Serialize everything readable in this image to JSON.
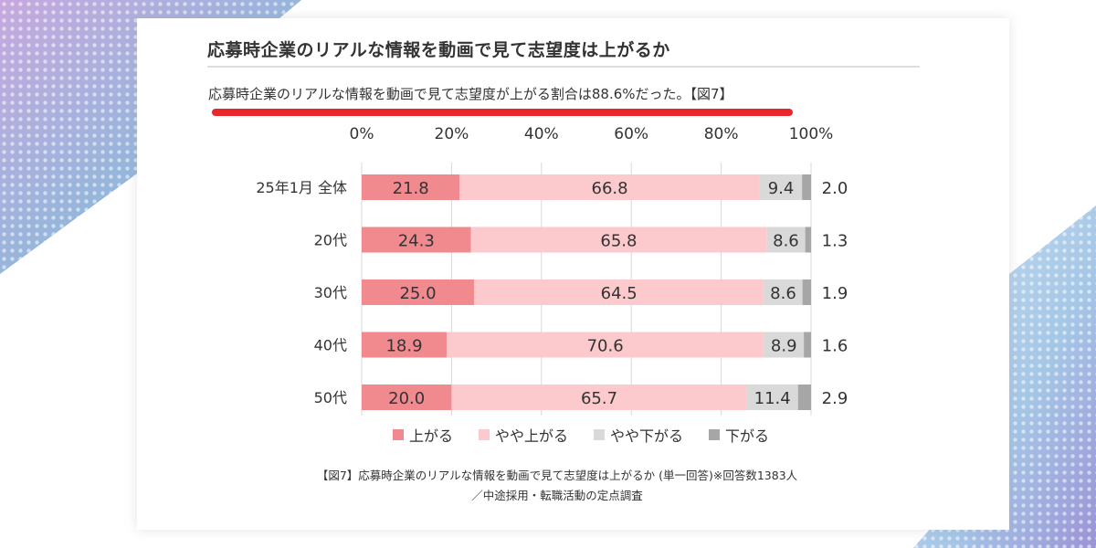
{
  "header": {
    "title": "応募時企業のリアルな情報を動画で見て志望度は上がるか",
    "subtitle": "応募時企業のリアルな情報を動画で見て志望度が上がる割合は88.6%だった。【図7】"
  },
  "chart_data": {
    "type": "bar",
    "orientation": "horizontal-stacked-100",
    "categories": [
      "25年1月 全体",
      "20代",
      "30代",
      "40代",
      "50代"
    ],
    "series": [
      {
        "name": "上がる",
        "values": [
          21.8,
          24.3,
          25.0,
          18.9,
          20.0
        ],
        "color": "#f08a8f"
      },
      {
        "name": "やや上がる",
        "values": [
          66.8,
          65.8,
          64.5,
          70.6,
          65.7
        ],
        "color": "#fcc9cc"
      },
      {
        "name": "やや下がる",
        "values": [
          9.4,
          8.6,
          8.6,
          8.9,
          11.4
        ],
        "color": "#d9d9d9"
      },
      {
        "name": "下がる",
        "values": [
          2.0,
          1.3,
          1.9,
          1.6,
          2.9
        ],
        "color": "#a6a6a6"
      }
    ],
    "x_ticks": [
      "0%",
      "20%",
      "40%",
      "60%",
      "80%",
      "100%"
    ],
    "xlim": [
      0,
      100
    ],
    "grid": true,
    "legend_position": "bottom"
  },
  "caption": {
    "line1": "【図7】応募時企業のリアルな情報を動画で見て志望度は上がるか (単一回答)※回答数1383人",
    "line2": "／中途採用・転職活動の定点調査"
  }
}
